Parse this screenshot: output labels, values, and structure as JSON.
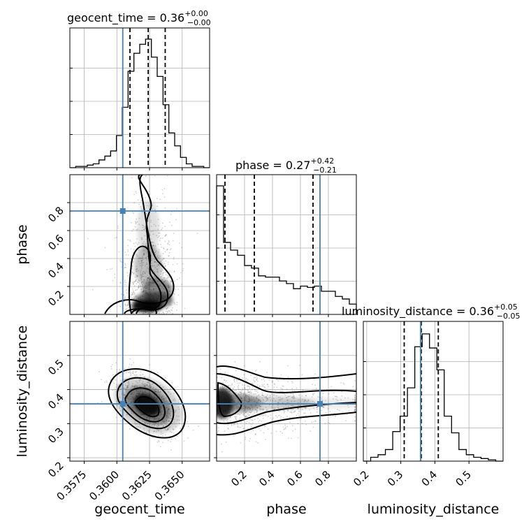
{
  "colors": {
    "truth": "#4682b4",
    "hist": "#000000",
    "grid": "#b0b0b0"
  },
  "chart_data": {
    "type": "corner",
    "parameters": [
      {
        "name": "geocent_time",
        "axis_label": "geocent_time",
        "title_text": "geocent_time = 0.36",
        "title_sup": "+0.00",
        "title_sub": "−0.00",
        "range": [
          0.3564,
          0.3671
        ],
        "ticks": [
          0.3575,
          0.36,
          0.3625,
          0.365
        ],
        "tick_labels": [
          "0.3575",
          "0.3600",
          "0.3625",
          "0.3650"
        ],
        "truth": 0.36045,
        "quantiles": [
          0.361,
          0.3624,
          0.3637
        ],
        "hist_bins": [
          0.0,
          0.01,
          0.01,
          0.02,
          0.03,
          0.06,
          0.09,
          0.13,
          0.25,
          0.47,
          0.75,
          0.89,
          0.96,
          1.0,
          0.86,
          0.71,
          0.49,
          0.27,
          0.17,
          0.08,
          0.03,
          0.01,
          0.01,
          0.0
        ]
      },
      {
        "name": "phase",
        "axis_label": "phase",
        "title_text": "phase = 0.27",
        "title_sup": "+0.42",
        "title_sub": "−0.21",
        "range": [
          0.0,
          1.0
        ],
        "ticks": [
          0.2,
          0.4,
          0.6,
          0.8
        ],
        "tick_labels": [
          "0.2",
          "0.4",
          "0.6",
          "0.8"
        ],
        "truth": 0.74,
        "quantiles": [
          0.06,
          0.27,
          0.69
        ],
        "hist_bins": [
          1.0,
          0.56,
          0.5,
          0.46,
          0.38,
          0.36,
          0.3,
          0.29,
          0.29,
          0.26,
          0.24,
          0.2,
          0.22,
          0.21,
          0.22,
          0.18,
          0.18,
          0.14,
          0.12,
          0.08
        ]
      },
      {
        "name": "luminosity_distance",
        "axis_label": "luminosity_distance",
        "title_text": "luminosity_distance = 0.36",
        "title_sup": "+0.05",
        "title_sub": "−0.05",
        "range": [
          0.19,
          0.6
        ],
        "ticks": [
          0.2,
          0.3,
          0.4,
          0.5
        ],
        "tick_labels": [
          "0.2",
          "0.3",
          "0.4",
          "0.5"
        ],
        "truth": 0.358,
        "quantiles": [
          0.31,
          0.36,
          0.41
        ],
        "hist_bins": [
          0.0,
          0.03,
          0.05,
          0.09,
          0.23,
          0.35,
          0.57,
          0.89,
          0.99,
          0.88,
          0.71,
          0.35,
          0.22,
          0.09,
          0.05,
          0.03,
          0.02,
          0.01,
          0.0
        ]
      }
    ],
    "pairs": [
      {
        "x": "geocent_time",
        "y": "phase",
        "y_range": [
          0.0,
          1.0
        ],
        "y_ticks": [
          0.2,
          0.4,
          0.6,
          0.8
        ]
      },
      {
        "x": "geocent_time",
        "y": "luminosity_distance",
        "y_range": [
          0.19,
          0.6
        ],
        "y_ticks": [
          0.2,
          0.3,
          0.4,
          0.5
        ]
      },
      {
        "x": "phase",
        "y": "luminosity_distance",
        "y_range": [
          0.19,
          0.6
        ],
        "y_ticks": [
          0.2,
          0.3,
          0.4,
          0.5
        ]
      }
    ],
    "grid": true,
    "legend": "none"
  }
}
